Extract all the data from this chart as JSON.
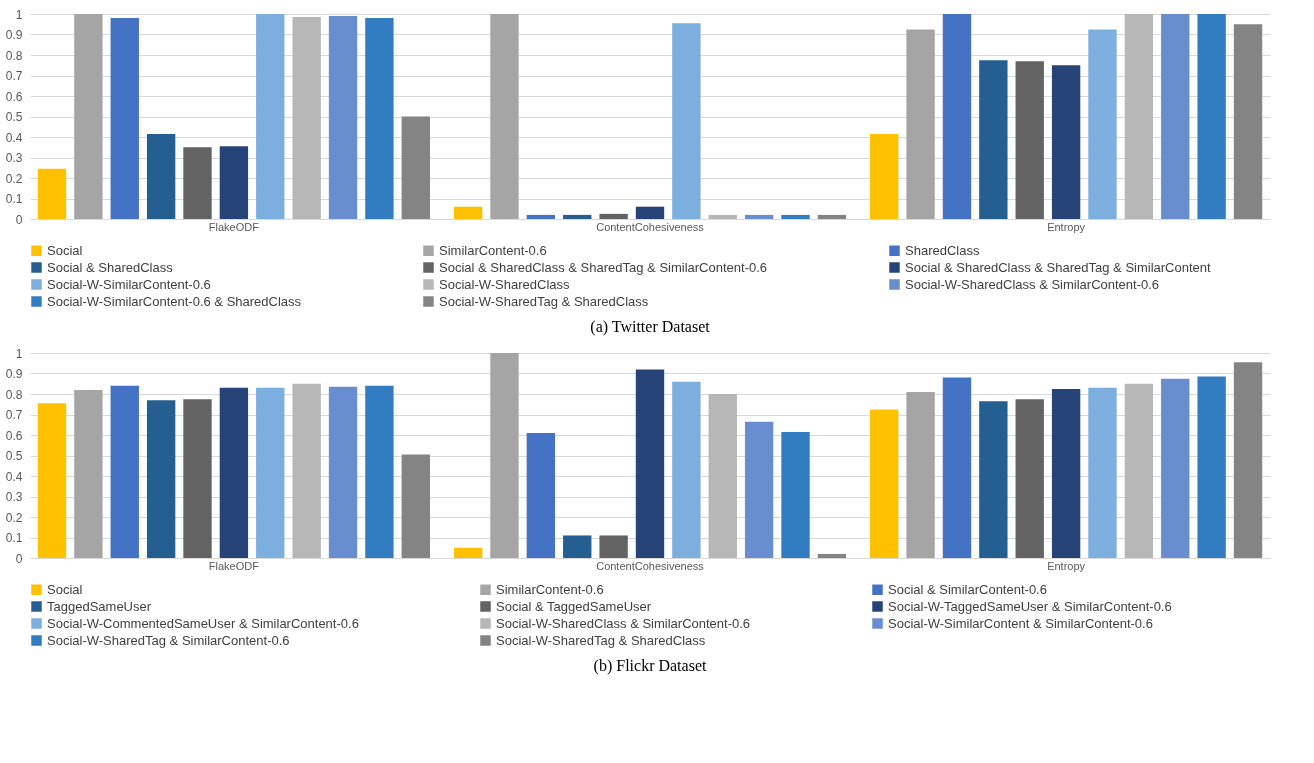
{
  "chart_data": [
    {
      "type": "bar",
      "title": "(a) Twitter Dataset",
      "categories": [
        "FlakeODF",
        "ContentCohesiveness",
        "Entropy"
      ],
      "ylim": [
        0,
        1
      ],
      "yticks": [
        0,
        0.1,
        0.2,
        0.3,
        0.4,
        0.5,
        0.6,
        0.7,
        0.8,
        0.9,
        1
      ],
      "grid": "y",
      "legend": "bottom",
      "series": [
        {
          "name": "Social",
          "color": "#ffc000",
          "values": [
            0.245,
            0.06,
            0.415
          ]
        },
        {
          "name": "SimilarContent-0.6",
          "color": "#a5a5a5",
          "values": [
            1,
            1,
            0.925
          ]
        },
        {
          "name": "SharedClass",
          "color": "#4472c4",
          "values": [
            0.98,
            0.02,
            1
          ]
        },
        {
          "name": "Social & SharedClass",
          "color": "#255e91",
          "values": [
            0.415,
            0.02,
            0.775
          ]
        },
        {
          "name": "Social & SharedClass & SharedTag & SimilarContent-0.6",
          "color": "#636363",
          "values": [
            0.35,
            0.025,
            0.77
          ]
        },
        {
          "name": "Social & SharedClass & SharedTag & SimilarContent",
          "color": "#264478",
          "values": [
            0.355,
            0.06,
            0.75
          ]
        },
        {
          "name": "Social-W-SimilarContent-0.6",
          "color": "#7cafdd",
          "values": [
            1,
            0.955,
            0.925
          ]
        },
        {
          "name": "Social-W-SharedClass",
          "color": "#b7b7b7",
          "values": [
            0.985,
            0.02,
            1
          ]
        },
        {
          "name": "Social-W-SharedClass & SimilarContent-0.6",
          "color": "#698ed0",
          "values": [
            0.99,
            0.02,
            1
          ]
        },
        {
          "name": "Social-W-SimilarContent-0.6 & SharedClass",
          "color": "#327dc2",
          "values": [
            0.98,
            0.02,
            1
          ]
        },
        {
          "name": "Social-W-SharedTag & SharedClass",
          "color": "#848484",
          "values": [
            0.5,
            0.02,
            0.95
          ]
        }
      ]
    },
    {
      "type": "bar",
      "title": "(b) Flickr Dataset",
      "categories": [
        "FlakeODF",
        "ContentCohesiveness",
        "Entropy"
      ],
      "ylim": [
        0,
        1
      ],
      "yticks": [
        0,
        0.1,
        0.2,
        0.3,
        0.4,
        0.5,
        0.6,
        0.7,
        0.8,
        0.9,
        1
      ],
      "grid": "y",
      "legend": "bottom",
      "series": [
        {
          "name": "Social",
          "color": "#ffc000",
          "values": [
            0.755,
            0.05,
            0.725
          ]
        },
        {
          "name": "SimilarContent-0.6",
          "color": "#a5a5a5",
          "values": [
            0.82,
            1,
            0.81
          ]
        },
        {
          "name": "Social & SimilarContent-0.6",
          "color": "#4472c4",
          "values": [
            0.84,
            0.61,
            0.88
          ]
        },
        {
          "name": "TaggedSameUser",
          "color": "#255e91",
          "values": [
            0.77,
            0.11,
            0.765
          ]
        },
        {
          "name": "Social & TaggedSameUser",
          "color": "#636363",
          "values": [
            0.775,
            0.11,
            0.775
          ]
        },
        {
          "name": "Social-W-TaggedSameUser & SimilarContent-0.6",
          "color": "#264478",
          "values": [
            0.83,
            0.92,
            0.825
          ]
        },
        {
          "name": "Social-W-CommentedSameUser & SimilarContent-0.6",
          "color": "#7cafdd",
          "values": [
            0.83,
            0.86,
            0.83
          ]
        },
        {
          "name": "Social-W-SharedClass & SimilarContent-0.6",
          "color": "#b7b7b7",
          "values": [
            0.85,
            0.8,
            0.85
          ]
        },
        {
          "name": "Social-W-SimilarContent & SimilarContent-0.6",
          "color": "#698ed0",
          "values": [
            0.835,
            0.665,
            0.875
          ]
        },
        {
          "name": "Social-W-SharedTag & SimilarContent-0.6",
          "color": "#327dc2",
          "values": [
            0.84,
            0.615,
            0.885
          ]
        },
        {
          "name": "Social-W-SharedTag & SharedClass",
          "color": "#848484",
          "values": [
            0.505,
            0.02,
            0.955
          ]
        }
      ]
    }
  ]
}
